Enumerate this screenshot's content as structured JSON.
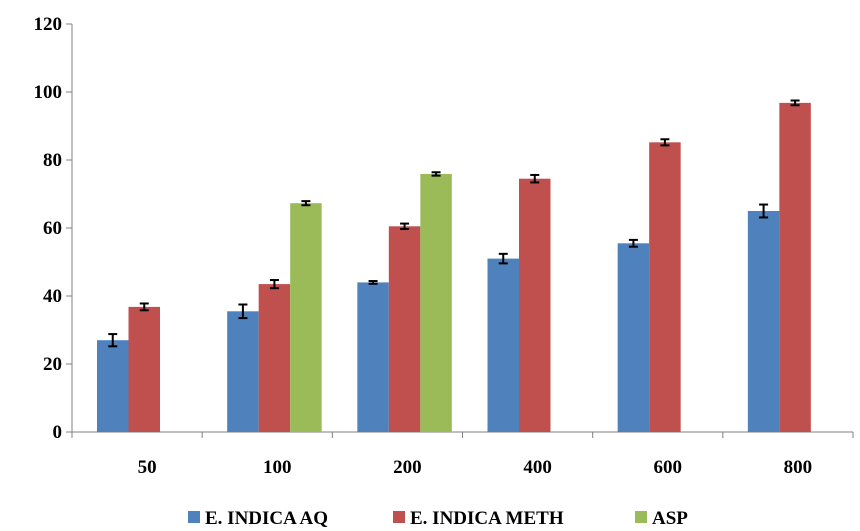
{
  "chart_data": {
    "type": "bar",
    "title": "",
    "xlabel": "",
    "ylabel": "",
    "categories": [
      "50",
      "100",
      "200",
      "400",
      "600",
      "800"
    ],
    "ylim": [
      0,
      120
    ],
    "yticks": [
      0,
      20,
      40,
      60,
      80,
      100,
      120
    ],
    "grid": false,
    "legend_position": "bottom",
    "error_bars": true,
    "series": [
      {
        "name": "E. INDICA AQ",
        "color": "#4f81bd",
        "values": [
          27,
          35.5,
          44,
          51,
          55.5,
          65
        ],
        "errors": [
          1.8,
          2.0,
          0.4,
          1.4,
          1.0,
          1.9
        ]
      },
      {
        "name": "E. INDICA METH",
        "color": "#c0504d",
        "values": [
          36.8,
          43.5,
          60.5,
          74.5,
          85.2,
          96.8
        ],
        "errors": [
          1.0,
          1.2,
          0.8,
          1.1,
          0.9,
          0.7
        ]
      },
      {
        "name": "ASP",
        "color": "#9bbb59",
        "values": [
          null,
          67.3,
          75.9,
          null,
          null,
          null
        ],
        "errors": [
          null,
          0.6,
          0.5,
          null,
          null,
          null
        ]
      }
    ]
  }
}
